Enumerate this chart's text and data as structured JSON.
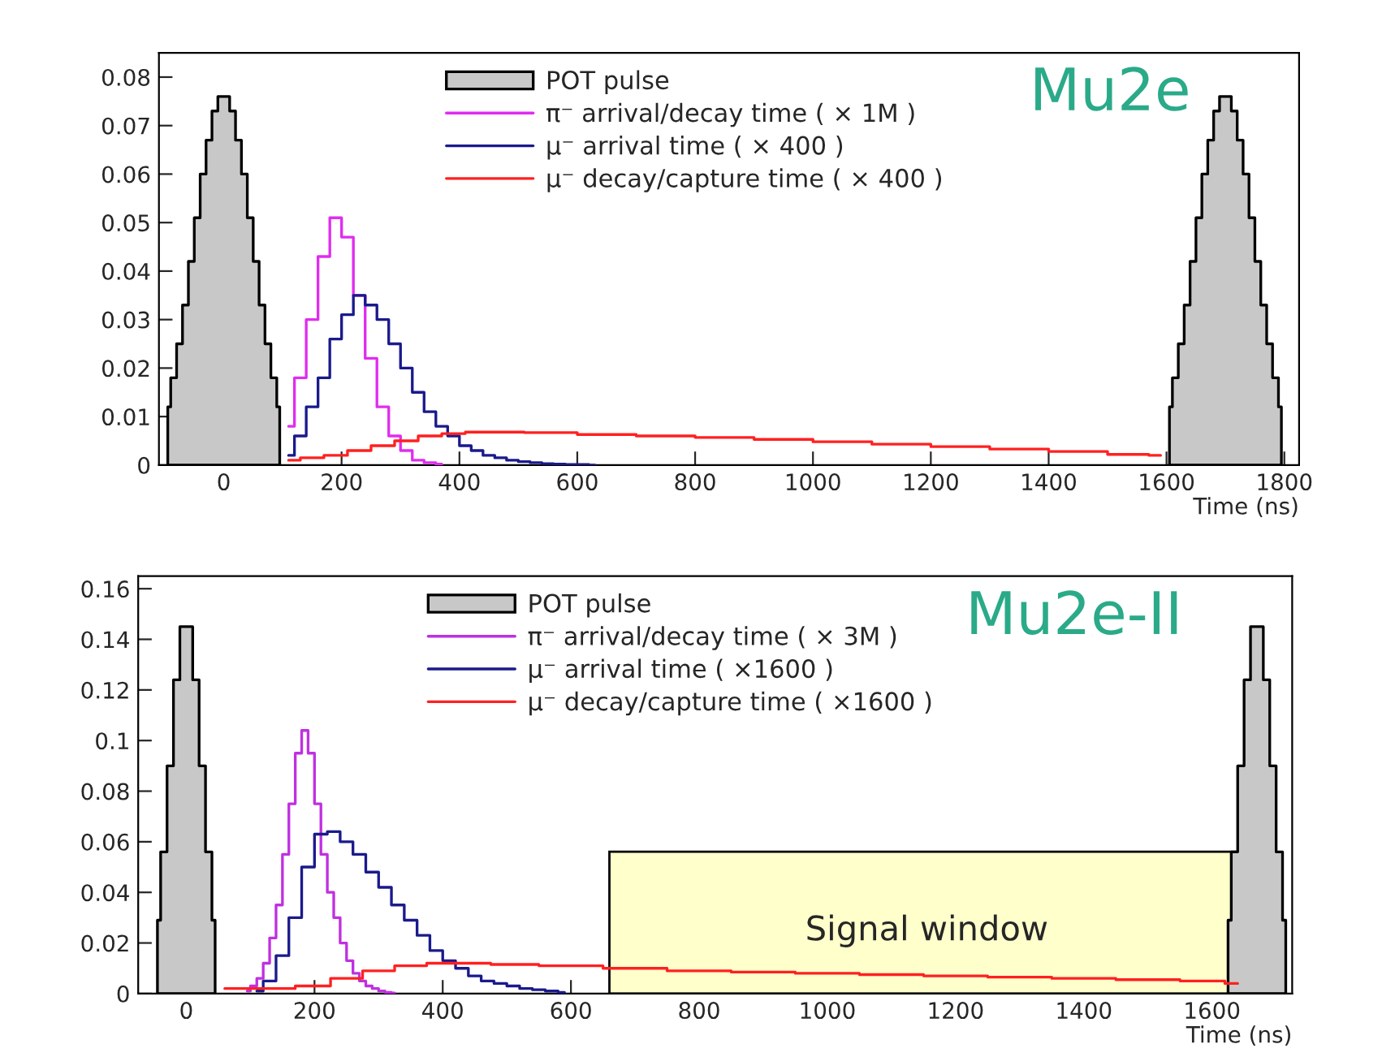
{
  "chart_data": [
    {
      "type": "step",
      "xlabel": "Time (ns)",
      "annotations": [
        "Mu2e"
      ],
      "xlim": [
        -110,
        1825
      ],
      "ylim": [
        0,
        0.085
      ],
      "xticks": [
        0,
        200,
        400,
        600,
        800,
        1000,
        1200,
        1400,
        1600,
        1800
      ],
      "yticks": [
        0,
        0.01,
        0.02,
        0.03,
        0.04,
        0.05,
        0.06,
        0.07,
        0.08
      ],
      "legend": "top",
      "grid": false,
      "series": [
        {
          "name": "POT pulse",
          "type": "area",
          "color": "#c8c8c8",
          "x": [
            -95,
            -85,
            -75,
            -65,
            -55,
            -45,
            -35,
            -25,
            -15,
            -5,
            5,
            15,
            25,
            35,
            45,
            55,
            65,
            75,
            85,
            95
          ],
          "values": [
            0.012,
            0.018,
            0.025,
            0.033,
            0.042,
            0.051,
            0.06,
            0.067,
            0.073,
            0.076,
            0.076,
            0.073,
            0.067,
            0.06,
            0.051,
            0.042,
            0.033,
            0.025,
            0.018,
            0.012
          ]
        },
        {
          "type": "area",
          "color": "#c8c8c8",
          "x": [
            1605,
            1615,
            1625,
            1635,
            1645,
            1655,
            1665,
            1675,
            1685,
            1695,
            1705,
            1715,
            1725,
            1735,
            1745,
            1755,
            1765,
            1775,
            1785,
            1795
          ],
          "values": [
            0.012,
            0.018,
            0.025,
            0.033,
            0.042,
            0.051,
            0.06,
            0.067,
            0.073,
            0.076,
            0.076,
            0.073,
            0.067,
            0.06,
            0.051,
            0.042,
            0.033,
            0.025,
            0.018,
            0.012
          ]
        },
        {
          "name": "π⁻ arrival/decay time ( × 1M )",
          "color": "#e02cf0",
          "x": [
            110,
            130,
            150,
            170,
            190,
            210,
            230,
            250,
            270,
            290,
            310,
            330,
            350,
            370
          ],
          "values": [
            0.008,
            0.018,
            0.03,
            0.043,
            0.051,
            0.047,
            0.035,
            0.022,
            0.012,
            0.006,
            0.003,
            0.001,
            0.0005,
            0.0002
          ]
        },
        {
          "name": "μ⁻ arrival time ( × 400 )",
          "color": "#1a1a8c",
          "x": [
            110,
            130,
            150,
            170,
            190,
            210,
            230,
            250,
            270,
            290,
            310,
            330,
            350,
            370,
            390,
            410,
            430,
            450,
            470,
            490,
            510,
            530,
            550,
            570,
            590,
            610,
            630
          ],
          "values": [
            0.002,
            0.006,
            0.012,
            0.018,
            0.026,
            0.031,
            0.035,
            0.033,
            0.03,
            0.025,
            0.02,
            0.015,
            0.011,
            0.008,
            0.006,
            0.004,
            0.003,
            0.002,
            0.0015,
            0.001,
            0.0007,
            0.0005,
            0.0003,
            0.0002,
            0.0001,
            0.0001,
            0
          ]
        },
        {
          "name": "μ⁻ decay/capture time ( × 400 )",
          "color": "#ff2020",
          "x": [
            110,
            150,
            190,
            230,
            270,
            310,
            350,
            390,
            430,
            470,
            550,
            650,
            750,
            850,
            950,
            1050,
            1150,
            1250,
            1350,
            1450,
            1550,
            1590
          ],
          "values": [
            0.001,
            0.0015,
            0.002,
            0.003,
            0.004,
            0.005,
            0.006,
            0.0065,
            0.0068,
            0.0068,
            0.0067,
            0.0063,
            0.006,
            0.0057,
            0.0053,
            0.0048,
            0.0043,
            0.0038,
            0.0033,
            0.0028,
            0.0022,
            0.002
          ]
        }
      ]
    },
    {
      "type": "step",
      "xlabel": "Time (ns)",
      "annotations": [
        "Mu2e-II"
      ],
      "xlim": [
        -75,
        1725
      ],
      "ylim": [
        0,
        0.165
      ],
      "xticks": [
        0,
        200,
        400,
        600,
        800,
        1000,
        1200,
        1400,
        1600
      ],
      "yticks": [
        0,
        0.02,
        0.04,
        0.06,
        0.08,
        0.1,
        0.12,
        0.14,
        0.16
      ],
      "legend": "top",
      "grid": false,
      "bands": [
        {
          "axis": "x",
          "from": 660,
          "to": 1650,
          "label": "Signal window",
          "color": "#ffffcc"
        }
      ],
      "series": [
        {
          "name": "POT pulse",
          "type": "area",
          "color": "#c8c8c8",
          "x": [
            -45,
            -35,
            -25,
            -15,
            -5,
            5,
            15,
            25,
            35,
            45
          ],
          "values": [
            0.029,
            0.056,
            0.09,
            0.124,
            0.145,
            0.145,
            0.124,
            0.09,
            0.056,
            0.029
          ]
        },
        {
          "type": "area",
          "color": "#c8c8c8",
          "x": [
            1625,
            1635,
            1645,
            1655,
            1665,
            1675,
            1685,
            1695,
            1705,
            1715
          ],
          "values": [
            0.029,
            0.056,
            0.09,
            0.124,
            0.145,
            0.145,
            0.124,
            0.09,
            0.056,
            0.029
          ]
        },
        {
          "name": "π⁻ arrival/decay time ( × 3M )",
          "color": "#c030e0",
          "x": [
            95,
            105,
            115,
            125,
            135,
            145,
            155,
            165,
            175,
            185,
            195,
            205,
            215,
            225,
            235,
            245,
            255,
            265,
            275,
            285,
            295,
            305,
            315,
            325
          ],
          "values": [
            0.001,
            0.003,
            0.006,
            0.012,
            0.022,
            0.035,
            0.055,
            0.075,
            0.095,
            0.104,
            0.095,
            0.075,
            0.055,
            0.04,
            0.03,
            0.02,
            0.013,
            0.008,
            0.005,
            0.003,
            0.002,
            0.001,
            0.0005,
            0.0002
          ]
        },
        {
          "name": "μ⁻ arrival time ( ×1600 )",
          "color": "#1a1a8c",
          "x": [
            110,
            130,
            150,
            170,
            190,
            210,
            230,
            250,
            270,
            290,
            310,
            330,
            350,
            370,
            390,
            410,
            430,
            450,
            470,
            490,
            510,
            530,
            550,
            570,
            590
          ],
          "values": [
            0.001,
            0.005,
            0.015,
            0.03,
            0.05,
            0.063,
            0.064,
            0.06,
            0.055,
            0.048,
            0.042,
            0.035,
            0.029,
            0.023,
            0.017,
            0.013,
            0.01,
            0.007,
            0.005,
            0.004,
            0.003,
            0.002,
            0.0015,
            0.001,
            0.0005
          ]
        },
        {
          "name": "μ⁻ decay/capture time ( ×1600 )",
          "color": "#ff2020",
          "x": [
            60,
            140,
            200,
            250,
            300,
            350,
            400,
            450,
            500,
            600,
            700,
            800,
            900,
            1000,
            1100,
            1200,
            1300,
            1400,
            1500,
            1600,
            1640
          ],
          "values": [
            0.002,
            0.002,
            0.003,
            0.006,
            0.009,
            0.011,
            0.012,
            0.012,
            0.0115,
            0.011,
            0.01,
            0.009,
            0.0085,
            0.008,
            0.0075,
            0.007,
            0.0065,
            0.006,
            0.0055,
            0.005,
            0.004
          ]
        }
      ]
    }
  ]
}
